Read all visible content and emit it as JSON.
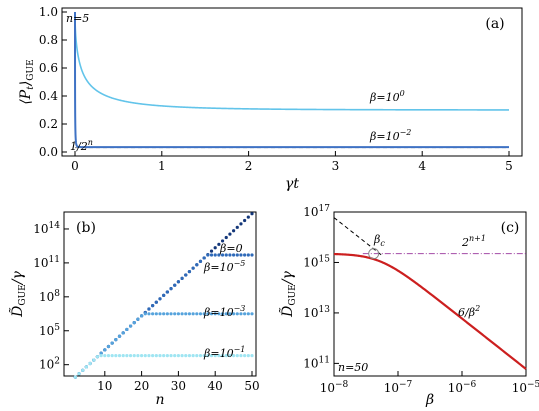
{
  "colors": {
    "light_blue": "#62c4ea",
    "dark_blue": "#3f72c4",
    "red": "#cc1f1f",
    "threshold_purple": "#a24aa6",
    "gray_dash": "#8c8c8c",
    "b0": "#14377a",
    "b5": "#2f6ab9",
    "b3": "#56a3dc",
    "b1": "#9fe5f2"
  },
  "chart_data": [
    {
      "type": "line",
      "panel": "(a)",
      "ylabel": "⟨P_t⟩_GUE",
      "ylabel_main": "⟨P",
      "ylabel_sub1": "t",
      "ylabel_mid": "⟩",
      "ylabel_sub2": "GUE",
      "xlabel": "γt",
      "xlim": [
        0,
        5
      ],
      "ylim": [
        0,
        1.0
      ],
      "x_ticks": [
        "0",
        "1",
        "2",
        "3",
        "4",
        "5"
      ],
      "y_ticks": [
        "0.0",
        "0.2",
        "0.4",
        "0.6",
        "0.8",
        "1.0"
      ],
      "annotations": {
        "n_label": "n=5",
        "baseline_label": "1/2",
        "baseline_exp": "n"
      },
      "baseline": 0.03125,
      "series": [
        {
          "label": "β=10",
          "label_exp": "0",
          "A": 0.65,
          "k": 3.1,
          "y_inf": 0.3,
          "color_key": "light_blue"
        },
        {
          "label": "β=10",
          "label_exp": "−2",
          "A": 0.93,
          "k": 32,
          "y_inf": 0.035,
          "color_key": "dark_blue"
        }
      ]
    },
    {
      "type": "scatter",
      "panel": "(b)",
      "xlabel": "n",
      "ylabel": "D̃_GUE/γ",
      "ylabel_sub": "GUE",
      "ylabel_tail": "/γ",
      "xlim": [
        0,
        50
      ],
      "ylim_log10": [
        1,
        15.5
      ],
      "x_ticks": [
        "10",
        "20",
        "30",
        "40",
        "50"
      ],
      "y_ticks": [
        {
          "base": "10",
          "exp": "2"
        },
        {
          "base": "10",
          "exp": "5"
        },
        {
          "base": "10",
          "exp": "8"
        },
        {
          "base": "10",
          "exp": "11"
        },
        {
          "base": "10",
          "exp": "14"
        }
      ],
      "x_range": [
        2,
        50
      ],
      "growth_log10_per_n": 0.301,
      "growth_offset_log10": 0.3,
      "series": [
        {
          "label": "β=0",
          "label_exp": "",
          "plateau_log10": null,
          "color_key": "b0"
        },
        {
          "label": "β=10",
          "label_exp": "−5",
          "plateau_log10": 11.7,
          "color_key": "b5"
        },
        {
          "label": "β=10",
          "label_exp": "−3",
          "plateau_log10": 6.5,
          "color_key": "b3"
        },
        {
          "label": "β=10",
          "label_exp": "−1",
          "plateau_log10": 2.8,
          "color_key": "b1"
        }
      ]
    },
    {
      "type": "line",
      "panel": "(c)",
      "xlabel": "β",
      "ylabel": "D̃_GUE/γ",
      "ylabel_sub": "GUE",
      "ylabel_tail": "/γ",
      "xscale": "log",
      "yscale": "log",
      "xlim_log10": [
        -8,
        -5
      ],
      "ylim_log10": [
        10.5,
        17
      ],
      "x_ticks": [
        {
          "base": "10",
          "exp": "−8"
        },
        {
          "base": "10",
          "exp": "−7"
        },
        {
          "base": "10",
          "exp": "−6"
        },
        {
          "base": "10",
          "exp": "−5"
        }
      ],
      "y_ticks": [
        {
          "base": "10",
          "exp": "11"
        },
        {
          "base": "10",
          "exp": "13"
        },
        {
          "base": "10",
          "exp": "15"
        },
        {
          "base": "10",
          "exp": "17"
        }
      ],
      "annotations": {
        "n_label": "n=50",
        "beta_c": "β",
        "beta_c_sub": "c",
        "threshold_base": "2",
        "threshold_exp": "n+1",
        "asymptote": "6/β",
        "asymptote_exp": "2"
      },
      "plateau_log10": 15.35,
      "asymptote_coef": 6,
      "beta_c_log10": -7.38
    }
  ]
}
